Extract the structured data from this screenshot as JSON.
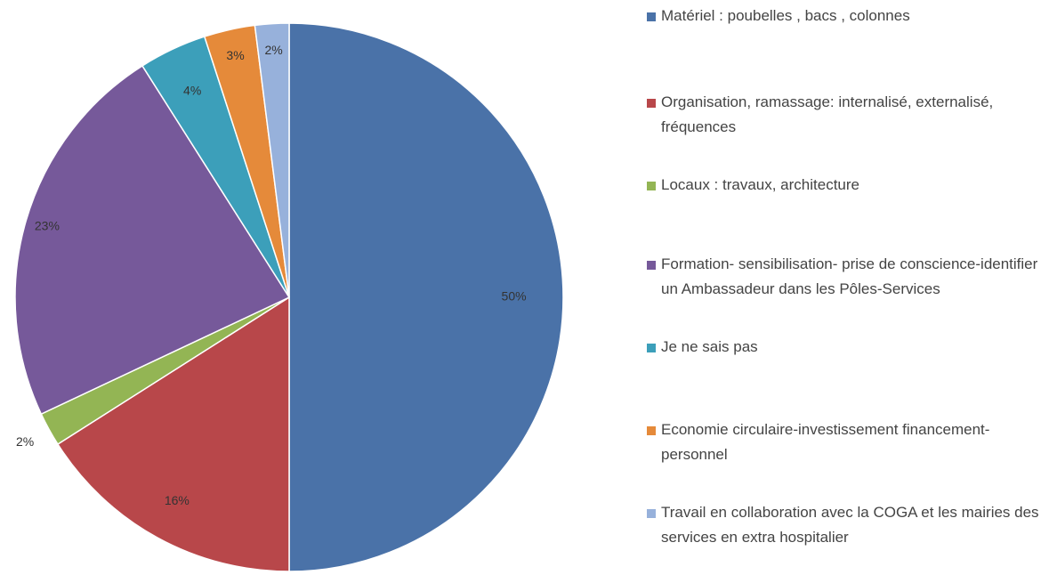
{
  "chart_data": {
    "type": "pie",
    "categories": [
      "Matériel : poubelles , bacs , colonnes",
      "Organisation, ramassage: internalisé, externalisé, fréquences",
      "Locaux : travaux, architecture",
      "Formation- sensibilisation- prise de conscience-identifier un  Ambassadeur dans les Pôles-Services",
      "Je ne sais pas",
      "Economie  circulaire-investissement financement- personnel",
      "Travail en collaboration avec la COGA  et les mairies des services en extra hospitalier"
    ],
    "values": [
      50,
      16,
      2,
      23,
      4,
      3,
      2
    ],
    "value_labels": [
      "50%",
      "16%",
      "2%",
      "23%",
      "4%",
      "3%",
      "2%"
    ],
    "colors": [
      "#4a72a8",
      "#b8474a",
      "#93b554",
      "#76599a",
      "#3c9fba",
      "#e58a3a",
      "#97b1db"
    ],
    "legend": "right"
  }
}
